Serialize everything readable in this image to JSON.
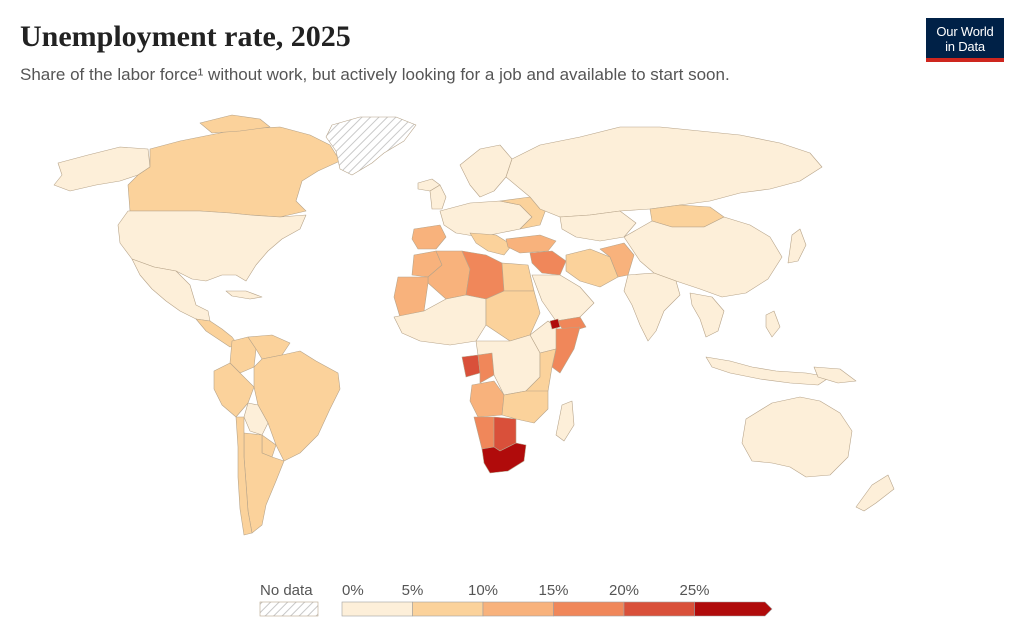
{
  "header": {
    "title": "Unemployment rate, 2025",
    "subtitle": "Share of the labor force¹ without work, but actively looking for a job and available to start soon."
  },
  "logo": {
    "line1": "Our World",
    "line2": "in Data",
    "bg_color": "#002147",
    "accent_color": "#ce261e"
  },
  "legend": {
    "no_data_label": "No data",
    "ticks": [
      "0%",
      "5%",
      "10%",
      "15%",
      "20%",
      "25%"
    ],
    "bins": [
      {
        "from": 0,
        "to": 5,
        "color": "#fdefd9"
      },
      {
        "from": 5,
        "to": 10,
        "color": "#fbd29b"
      },
      {
        "from": 10,
        "to": 15,
        "color": "#f8b27c"
      },
      {
        "from": 15,
        "to": 20,
        "color": "#f0875a"
      },
      {
        "from": 20,
        "to": 25,
        "color": "#d9503a"
      },
      {
        "from": 25,
        "to": null,
        "color": "#b00b0b"
      }
    ]
  },
  "map": {
    "projection": "Robinson",
    "no_data_regions": [
      "Greenland"
    ],
    "regions": [
      {
        "name": "Canada",
        "value": 6.5
      },
      {
        "name": "United States",
        "value": 4.2
      },
      {
        "name": "Mexico",
        "value": 2.7
      },
      {
        "name": "Brazil",
        "value": 6.8
      },
      {
        "name": "Colombia",
        "value": 9.0
      },
      {
        "name": "Venezuela",
        "value": 5.5
      },
      {
        "name": "Peru",
        "value": 5.0
      },
      {
        "name": "Bolivia",
        "value": 3.1
      },
      {
        "name": "Paraguay",
        "value": 5.8
      },
      {
        "name": "Chile",
        "value": 8.5
      },
      {
        "name": "Argentina",
        "value": 7.2
      },
      {
        "name": "Russia",
        "value": 2.5
      },
      {
        "name": "China",
        "value": 4.6
      },
      {
        "name": "Mongolia",
        "value": 6.0
      },
      {
        "name": "India",
        "value": 4.2
      },
      {
        "name": "Pakistan",
        "value": 5.5
      },
      {
        "name": "Iran",
        "value": 8.0
      },
      {
        "name": "Saudi Arabia",
        "value": 3.7
      },
      {
        "name": "Turkey",
        "value": 8.5
      },
      {
        "name": "Iraq",
        "value": 15.0
      },
      {
        "name": "Yemen",
        "value": 17.0
      },
      {
        "name": "Libya",
        "value": 18.6
      },
      {
        "name": "Algeria",
        "value": 11.7
      },
      {
        "name": "Morocco",
        "value": 12.3
      },
      {
        "name": "Mauritania",
        "value": 10.5
      },
      {
        "name": "Egypt",
        "value": 6.6
      },
      {
        "name": "Sudan",
        "value": 11.5
      },
      {
        "name": "Somalia",
        "value": 18.9
      },
      {
        "name": "Djibouti",
        "value": 26.0
      },
      {
        "name": "Gabon",
        "value": 20.4
      },
      {
        "name": "Congo",
        "value": 19.5
      },
      {
        "name": "Angola",
        "value": 14.5
      },
      {
        "name": "Namibia",
        "value": 19.0
      },
      {
        "name": "Botswana",
        "value": 23.0
      },
      {
        "name": "South Africa",
        "value": 33.0
      },
      {
        "name": "Eswatini",
        "value": 33.0
      },
      {
        "name": "Lesotho",
        "value": 16.5
      },
      {
        "name": "Spain",
        "value": 11.3
      },
      {
        "name": "Australia",
        "value": 4.1
      },
      {
        "name": "New Zealand",
        "value": 5.0
      }
    ]
  }
}
